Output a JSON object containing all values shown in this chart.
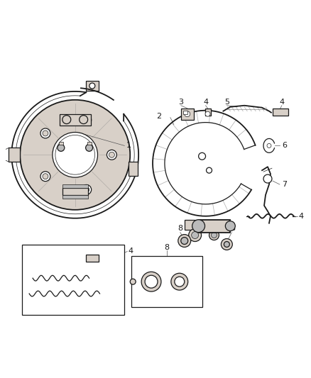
{
  "bg_color": "#ffffff",
  "line_color": "#1a1a1a",
  "gray_dark": "#555555",
  "gray_med": "#888888",
  "gray_light": "#bbbbbb",
  "gray_fill": "#d8d0c8",
  "figsize": [
    4.38,
    5.33
  ],
  "dpi": 100,
  "label_fs": 7.5,
  "lw_main": 0.9,
  "lw_thick": 1.3,
  "lw_thin": 0.5
}
